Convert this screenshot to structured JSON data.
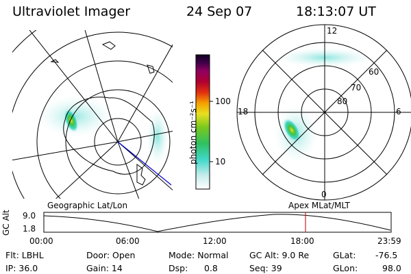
{
  "header": {
    "title": "Ultraviolet Imager",
    "date": "24 Sep 07",
    "time": "18:13:07 UT"
  },
  "colorbar": {
    "label": "photon cm⁻²s⁻¹",
    "ticks": [
      "100",
      "10"
    ]
  },
  "polar_plot": {
    "mlt_labels": {
      "top": "12",
      "left": "18",
      "right": "6",
      "bottom": "0"
    },
    "lat_labels": [
      "60",
      "70",
      "80"
    ]
  },
  "timeline": {
    "left_label": "Geographic Lat/Lon",
    "right_label": "Apex MLat/MLT",
    "axis_title": "GC Alt",
    "y_ticks": [
      "9.0",
      "1.8"
    ],
    "x_ticks": [
      "00:00",
      "06:00",
      "12:00",
      "18:00",
      "23:59"
    ]
  },
  "info": {
    "filter": "Flt: LBHL",
    "ip": "IP: 36.0",
    "door": "Door: Open",
    "gain": "Gain: 14",
    "mode": "Mode: Normal",
    "dsp_label": "Dsp:",
    "dsp_value": "0.8",
    "gc_alt": "GC Alt: 9.0 Re",
    "seq": "Seq: 39",
    "glat_label": "GLat:",
    "glat_value": "-76.5",
    "glon_label": "GLon:",
    "glon_value": "98.0"
  },
  "colors": {
    "marker": "#cc2222",
    "track": "#0000cc"
  }
}
